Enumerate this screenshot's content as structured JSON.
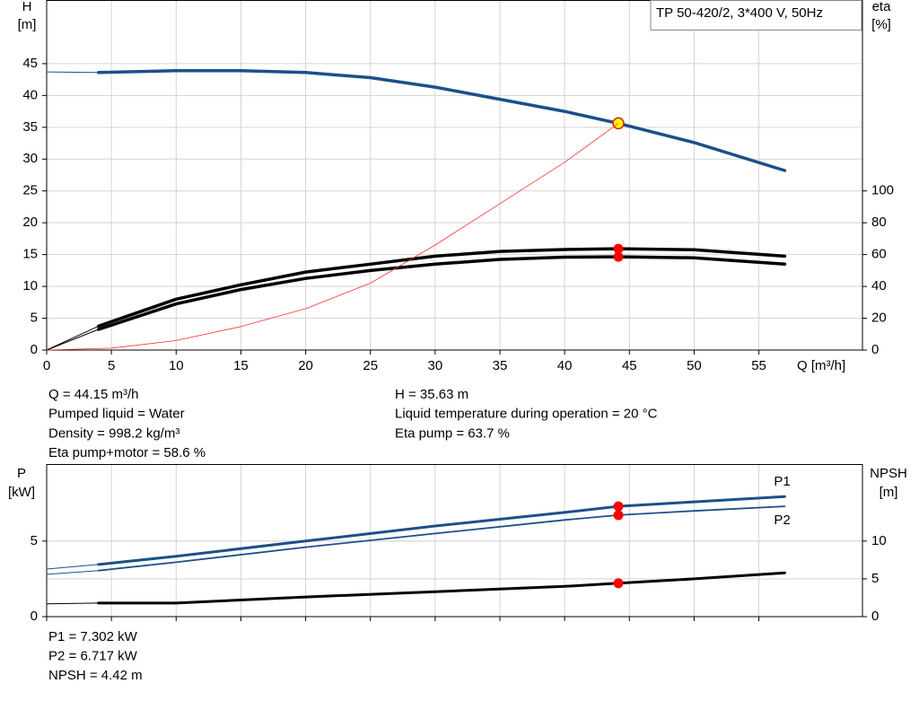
{
  "chart_data": [
    {
      "type": "line",
      "ylabel": [
        "H",
        "[m]"
      ],
      "y2label": [
        "eta",
        "[%]"
      ],
      "xlabel": "Q [m³/h]",
      "title": "TP 50-420/2, 3*400 V, 50Hz",
      "xlim": [
        0,
        63
      ],
      "xticks": [
        0,
        5,
        10,
        15,
        20,
        25,
        30,
        35,
        40,
        45,
        50,
        55
      ],
      "xtick_labels": true,
      "ylim": [
        0,
        55
      ],
      "yticks": [
        0,
        5,
        10,
        15,
        20,
        25,
        30,
        35,
        40,
        45
      ],
      "y2lim": [
        0,
        220
      ],
      "y2ticks": [
        0,
        20,
        40,
        60,
        80,
        100
      ],
      "grid": true,
      "duty_q": 44.15,
      "series": [
        {
          "color": "#1c4f8a",
          "width": 3.5,
          "marker": "#ffff00",
          "x": [
            0,
            4,
            10,
            15,
            20,
            25,
            30,
            35,
            40,
            44.15,
            50,
            57
          ],
          "values": [
            43.7,
            43.6,
            43.9,
            43.9,
            43.6,
            42.8,
            41.3,
            39.4,
            37.5,
            35.63,
            32.6,
            28.2
          ]
        },
        {
          "color": "#000000",
          "width": 3.5,
          "marker": "#ff0000",
          "axis": "y2",
          "x": [
            0,
            4,
            10,
            15,
            20,
            25,
            30,
            35,
            40,
            44.15,
            50,
            57
          ],
          "values": [
            0,
            15,
            32,
            41,
            49,
            54,
            59,
            62,
            63.2,
            63.7,
            63,
            59
          ]
        },
        {
          "color": "#000000",
          "width": 3.5,
          "marker": "#ff0000",
          "axis": "y2",
          "x": [
            0,
            4,
            10,
            15,
            20,
            25,
            30,
            35,
            40,
            44.15,
            50,
            57
          ],
          "values": [
            0,
            13,
            29,
            38,
            45,
            50,
            54,
            57,
            58.4,
            58.6,
            58,
            54
          ]
        },
        {
          "color": "#ff3030",
          "width": 0.8,
          "x": [
            0,
            5,
            10,
            15,
            20,
            25,
            30,
            35,
            40,
            44.15
          ],
          "values": [
            0,
            0.3,
            1.5,
            3.7,
            6.5,
            10.5,
            16.5,
            23,
            29.5,
            35.63
          ]
        }
      ]
    },
    {
      "type": "line",
      "ylabel": [
        "P",
        "[kW]"
      ],
      "y2label": [
        "NPSH",
        "[m]"
      ],
      "xlim": [
        0,
        63
      ],
      "xticks": [
        0,
        5,
        10,
        15,
        20,
        25,
        30,
        35,
        40,
        45,
        50,
        55
      ],
      "xtick_labels": false,
      "ylim": [
        0,
        10.1
      ],
      "yticks": [
        0,
        5
      ],
      "y2lim": [
        0,
        20.2
      ],
      "y2ticks": [
        0,
        5,
        10
      ],
      "grid": true,
      "duty_q": 44.15,
      "series": [
        {
          "name": "P1",
          "color": "#1c4f8a",
          "width": 3,
          "marker": "#ff0000",
          "x": [
            0,
            4,
            10,
            20,
            30,
            40,
            44.15,
            50,
            57
          ],
          "values": [
            3.15,
            3.45,
            4.0,
            5.0,
            6.0,
            6.9,
            7.302,
            7.6,
            7.95
          ]
        },
        {
          "name": "P2",
          "color": "#1c4f8a",
          "width": 1.8,
          "marker": "#ff0000",
          "x": [
            0,
            4,
            10,
            20,
            30,
            40,
            44.15,
            50,
            57
          ],
          "values": [
            2.8,
            3.05,
            3.6,
            4.6,
            5.5,
            6.4,
            6.717,
            7.0,
            7.3
          ]
        },
        {
          "color": "#000000",
          "width": 3,
          "marker": "#ff0000",
          "axis": "y2",
          "x": [
            0,
            4,
            10,
            20,
            30,
            40,
            44.15,
            50,
            57
          ],
          "values": [
            1.7,
            1.8,
            1.8,
            2.6,
            3.3,
            4.0,
            4.42,
            5.0,
            5.8
          ]
        }
      ]
    }
  ],
  "info_top_left": [
    "Q = 44.15 m³/h",
    "Pumped liquid = Water",
    "Density = 998.2 kg/m³",
    "Eta pump+motor = 58.6 %"
  ],
  "info_top_right": [
    "H = 35.63 m",
    "Liquid temperature during operation = 20 °C",
    "Eta pump = 63.7 %"
  ],
  "info_bottom": [
    "P1 = 7.302 kW",
    "P2 = 6.717 kW",
    "NPSH = 4.42 m"
  ]
}
